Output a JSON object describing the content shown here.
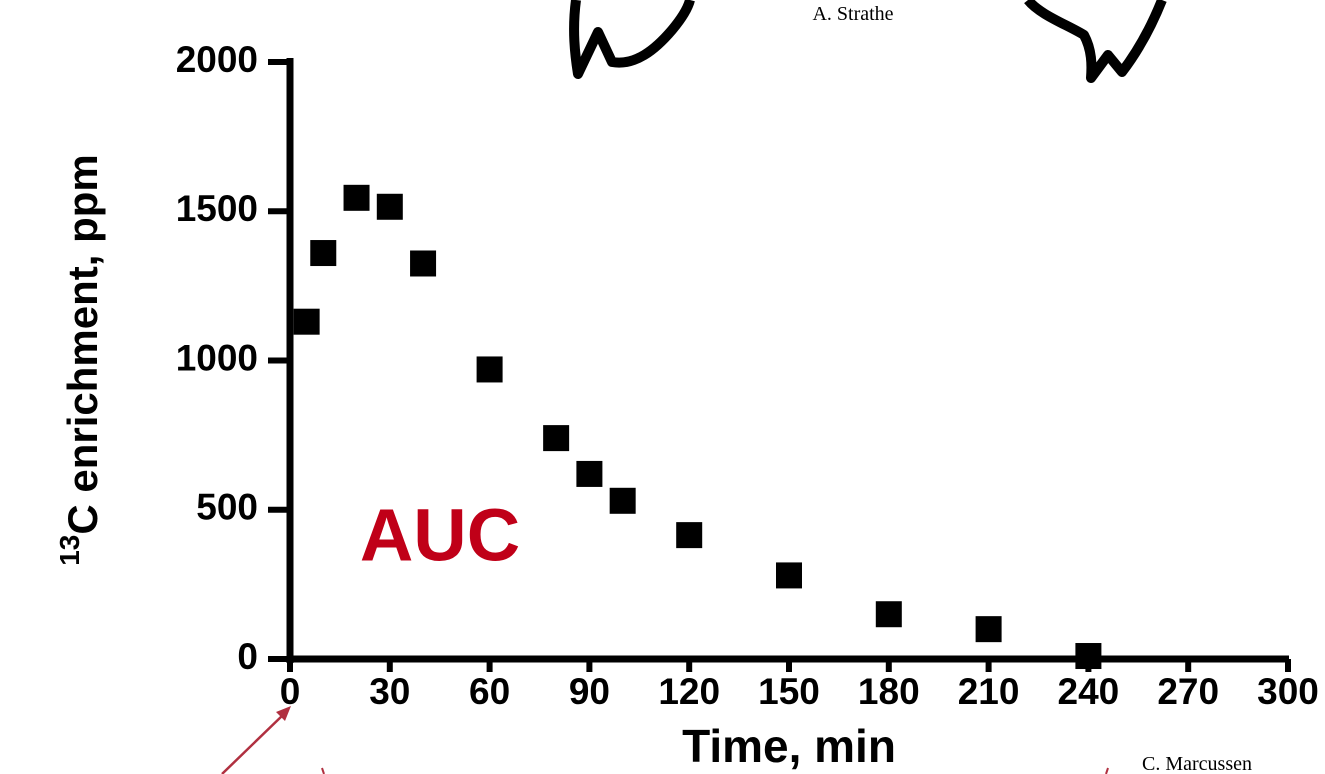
{
  "chart_data": {
    "type": "scatter",
    "header_author": "A. Strathe",
    "footer_author": "C. Marcussen",
    "annotation": "AUC",
    "annotation_color": "#c00018",
    "xlabel": "Time, min",
    "ylabel_sup": "13",
    "ylabel": "C enrichment, ppm",
    "marker_color": "#000000",
    "x": [
      5,
      10,
      20,
      30,
      40,
      60,
      80,
      90,
      100,
      120,
      150,
      180,
      210,
      240
    ],
    "values": [
      1130,
      1360,
      1545,
      1515,
      1325,
      970,
      740,
      620,
      530,
      415,
      280,
      150,
      100,
      10
    ],
    "xlim": [
      0,
      300
    ],
    "xticks": [
      0,
      30,
      60,
      90,
      120,
      150,
      180,
      210,
      240,
      270,
      300
    ],
    "ylim": [
      0,
      2000
    ],
    "yticks": [
      0,
      500,
      1000,
      1500,
      2000
    ]
  }
}
